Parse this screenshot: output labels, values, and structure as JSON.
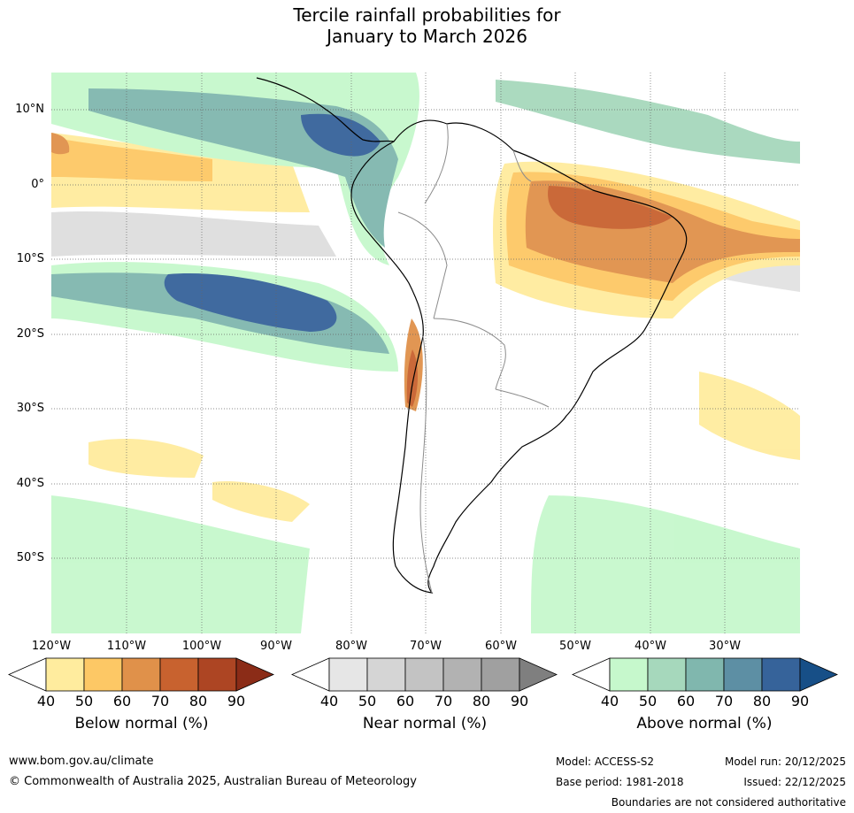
{
  "title": {
    "line1": "Tercile rainfall probabilities for",
    "line2": "January to March 2026"
  },
  "map": {
    "region": "South America",
    "lat_labels": [
      "10°N",
      "0°",
      "10°S",
      "20°S",
      "30°S",
      "40°S",
      "50°S"
    ],
    "lon_labels": [
      "120°W",
      "110°W",
      "100°W",
      "90°W",
      "80°W",
      "70°W",
      "60°W",
      "50°W",
      "40°W",
      "30°W"
    ],
    "gridlines": true,
    "ocean_color": "#ffffff",
    "coastline_color": "#000000",
    "border_color": "#8c8c8c"
  },
  "colorbars": {
    "below": {
      "label": "Below normal (%)",
      "ticks": [
        "40",
        "50",
        "60",
        "70",
        "80",
        "90"
      ],
      "colors": [
        "#ffffff",
        "#ffec9e",
        "#fdc865",
        "#e0914a",
        "#c8622f",
        "#ad4523",
        "#8b2c17"
      ]
    },
    "near": {
      "label": "Near normal (%)",
      "ticks": [
        "40",
        "50",
        "60",
        "70",
        "80",
        "90"
      ],
      "colors": [
        "#ffffff",
        "#e6e6e6",
        "#d5d5d5",
        "#c3c3c3",
        "#b2b2b2",
        "#a0a0a0",
        "#7f7f7f"
      ]
    },
    "above": {
      "label": "Above normal (%)",
      "ticks": [
        "40",
        "50",
        "60",
        "70",
        "80",
        "90"
      ],
      "colors": [
        "#ffffff",
        "#c6f8cc",
        "#a6d8bc",
        "#80b7ae",
        "#5d8fa4",
        "#36639a",
        "#174f87"
      ]
    }
  },
  "footer": {
    "url": "www.bom.gov.au/climate",
    "copyright": "© Commonwealth of Australia 2025, Australian Bureau of Meteorology",
    "model": "Model: ACCESS-S2",
    "model_run": "Model run: 20/12/2025",
    "base_period": "Base period: 1981-2018",
    "issued": "Issued: 22/12/2025",
    "disclaimer": "Boundaries are not considered authoritative"
  }
}
